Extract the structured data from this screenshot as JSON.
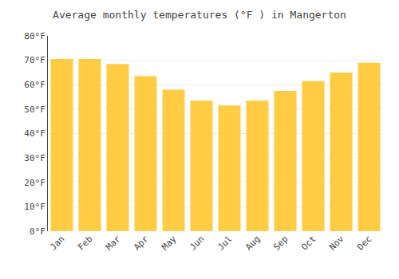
{
  "chart_data": {
    "type": "bar",
    "title": "Average monthly temperatures (°F ) in Mangerton",
    "categories": [
      "Jan",
      "Feb",
      "Mar",
      "Apr",
      "May",
      "Jun",
      "Jul",
      "Aug",
      "Sep",
      "Oct",
      "Nov",
      "Dec"
    ],
    "values": [
      70.5,
      70.5,
      68.5,
      63.5,
      58.0,
      53.5,
      51.5,
      53.5,
      57.5,
      61.5,
      65.0,
      69.0
    ],
    "color": "#FFCC44",
    "ylim": [
      0,
      80
    ],
    "yticks": [
      {
        "value": 0,
        "label": "0°F"
      },
      {
        "value": 10,
        "label": "10°F"
      },
      {
        "value": 20,
        "label": "20°F"
      },
      {
        "value": 30,
        "label": "30°F"
      },
      {
        "value": 40,
        "label": "40°F"
      },
      {
        "value": 50,
        "label": "50°F"
      },
      {
        "value": 60,
        "label": "60°F"
      },
      {
        "value": 70,
        "label": "70°F"
      },
      {
        "value": 80,
        "label": "80°F"
      }
    ],
    "grid": true
  }
}
